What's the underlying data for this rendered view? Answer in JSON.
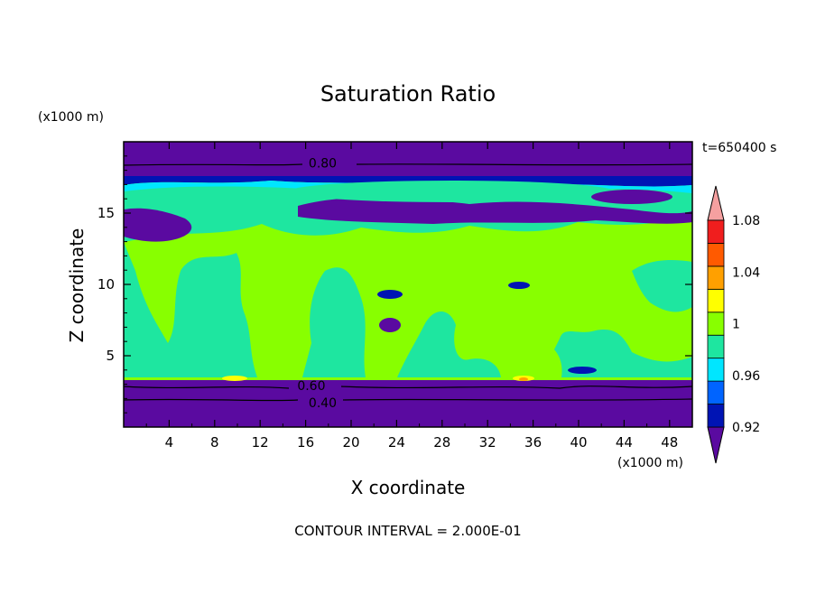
{
  "chart_data": {
    "type": "heatmap",
    "title": "Saturation Ratio",
    "xlabel": "X coordinate",
    "ylabel": "Z coordinate",
    "x_unit": "(x1000 m)",
    "y_unit": "(x1000 m)",
    "xlim": [
      0,
      50
    ],
    "ylim": [
      0,
      20
    ],
    "x_ticks": [
      4,
      8,
      12,
      16,
      20,
      24,
      28,
      32,
      36,
      40,
      44,
      48
    ],
    "y_ticks": [
      5,
      10,
      15
    ],
    "time_label": "t=650400 s",
    "footer": "CONTOUR INTERVAL = 2.000E-01",
    "contour_labels": [
      {
        "text": "0.80",
        "x": 17.5,
        "z": 18.5
      },
      {
        "text": "0.60",
        "x": 16.5,
        "z": 2.9
      },
      {
        "text": "0.40",
        "x": 17.5,
        "z": 1.7
      }
    ],
    "colorbar": {
      "colors": [
        "#5a0aa0",
        "#0014b4",
        "#0064ff",
        "#00e6ff",
        "#1ee6a0",
        "#88ff00",
        "#ffff00",
        "#ffa000",
        "#ff5a00",
        "#f01e1e",
        "#f5a0a0"
      ],
      "tick_labels": [
        "0.92",
        "0.96",
        "1",
        "1.04",
        "1.08"
      ],
      "ticks": [
        0.92,
        0.96,
        1.0,
        1.04,
        1.08
      ],
      "boundaries": [
        0.9,
        0.92,
        0.94,
        0.96,
        0.98,
        1.0,
        1.02,
        1.04,
        1.06,
        1.08,
        1.1
      ]
    },
    "regions": {
      "upper_dry_layer_z": [
        18.3,
        20
      ],
      "lower_dry_layer_z": [
        0,
        3.3
      ],
      "moist_layer_z": [
        3.3,
        17.0
      ]
    }
  }
}
